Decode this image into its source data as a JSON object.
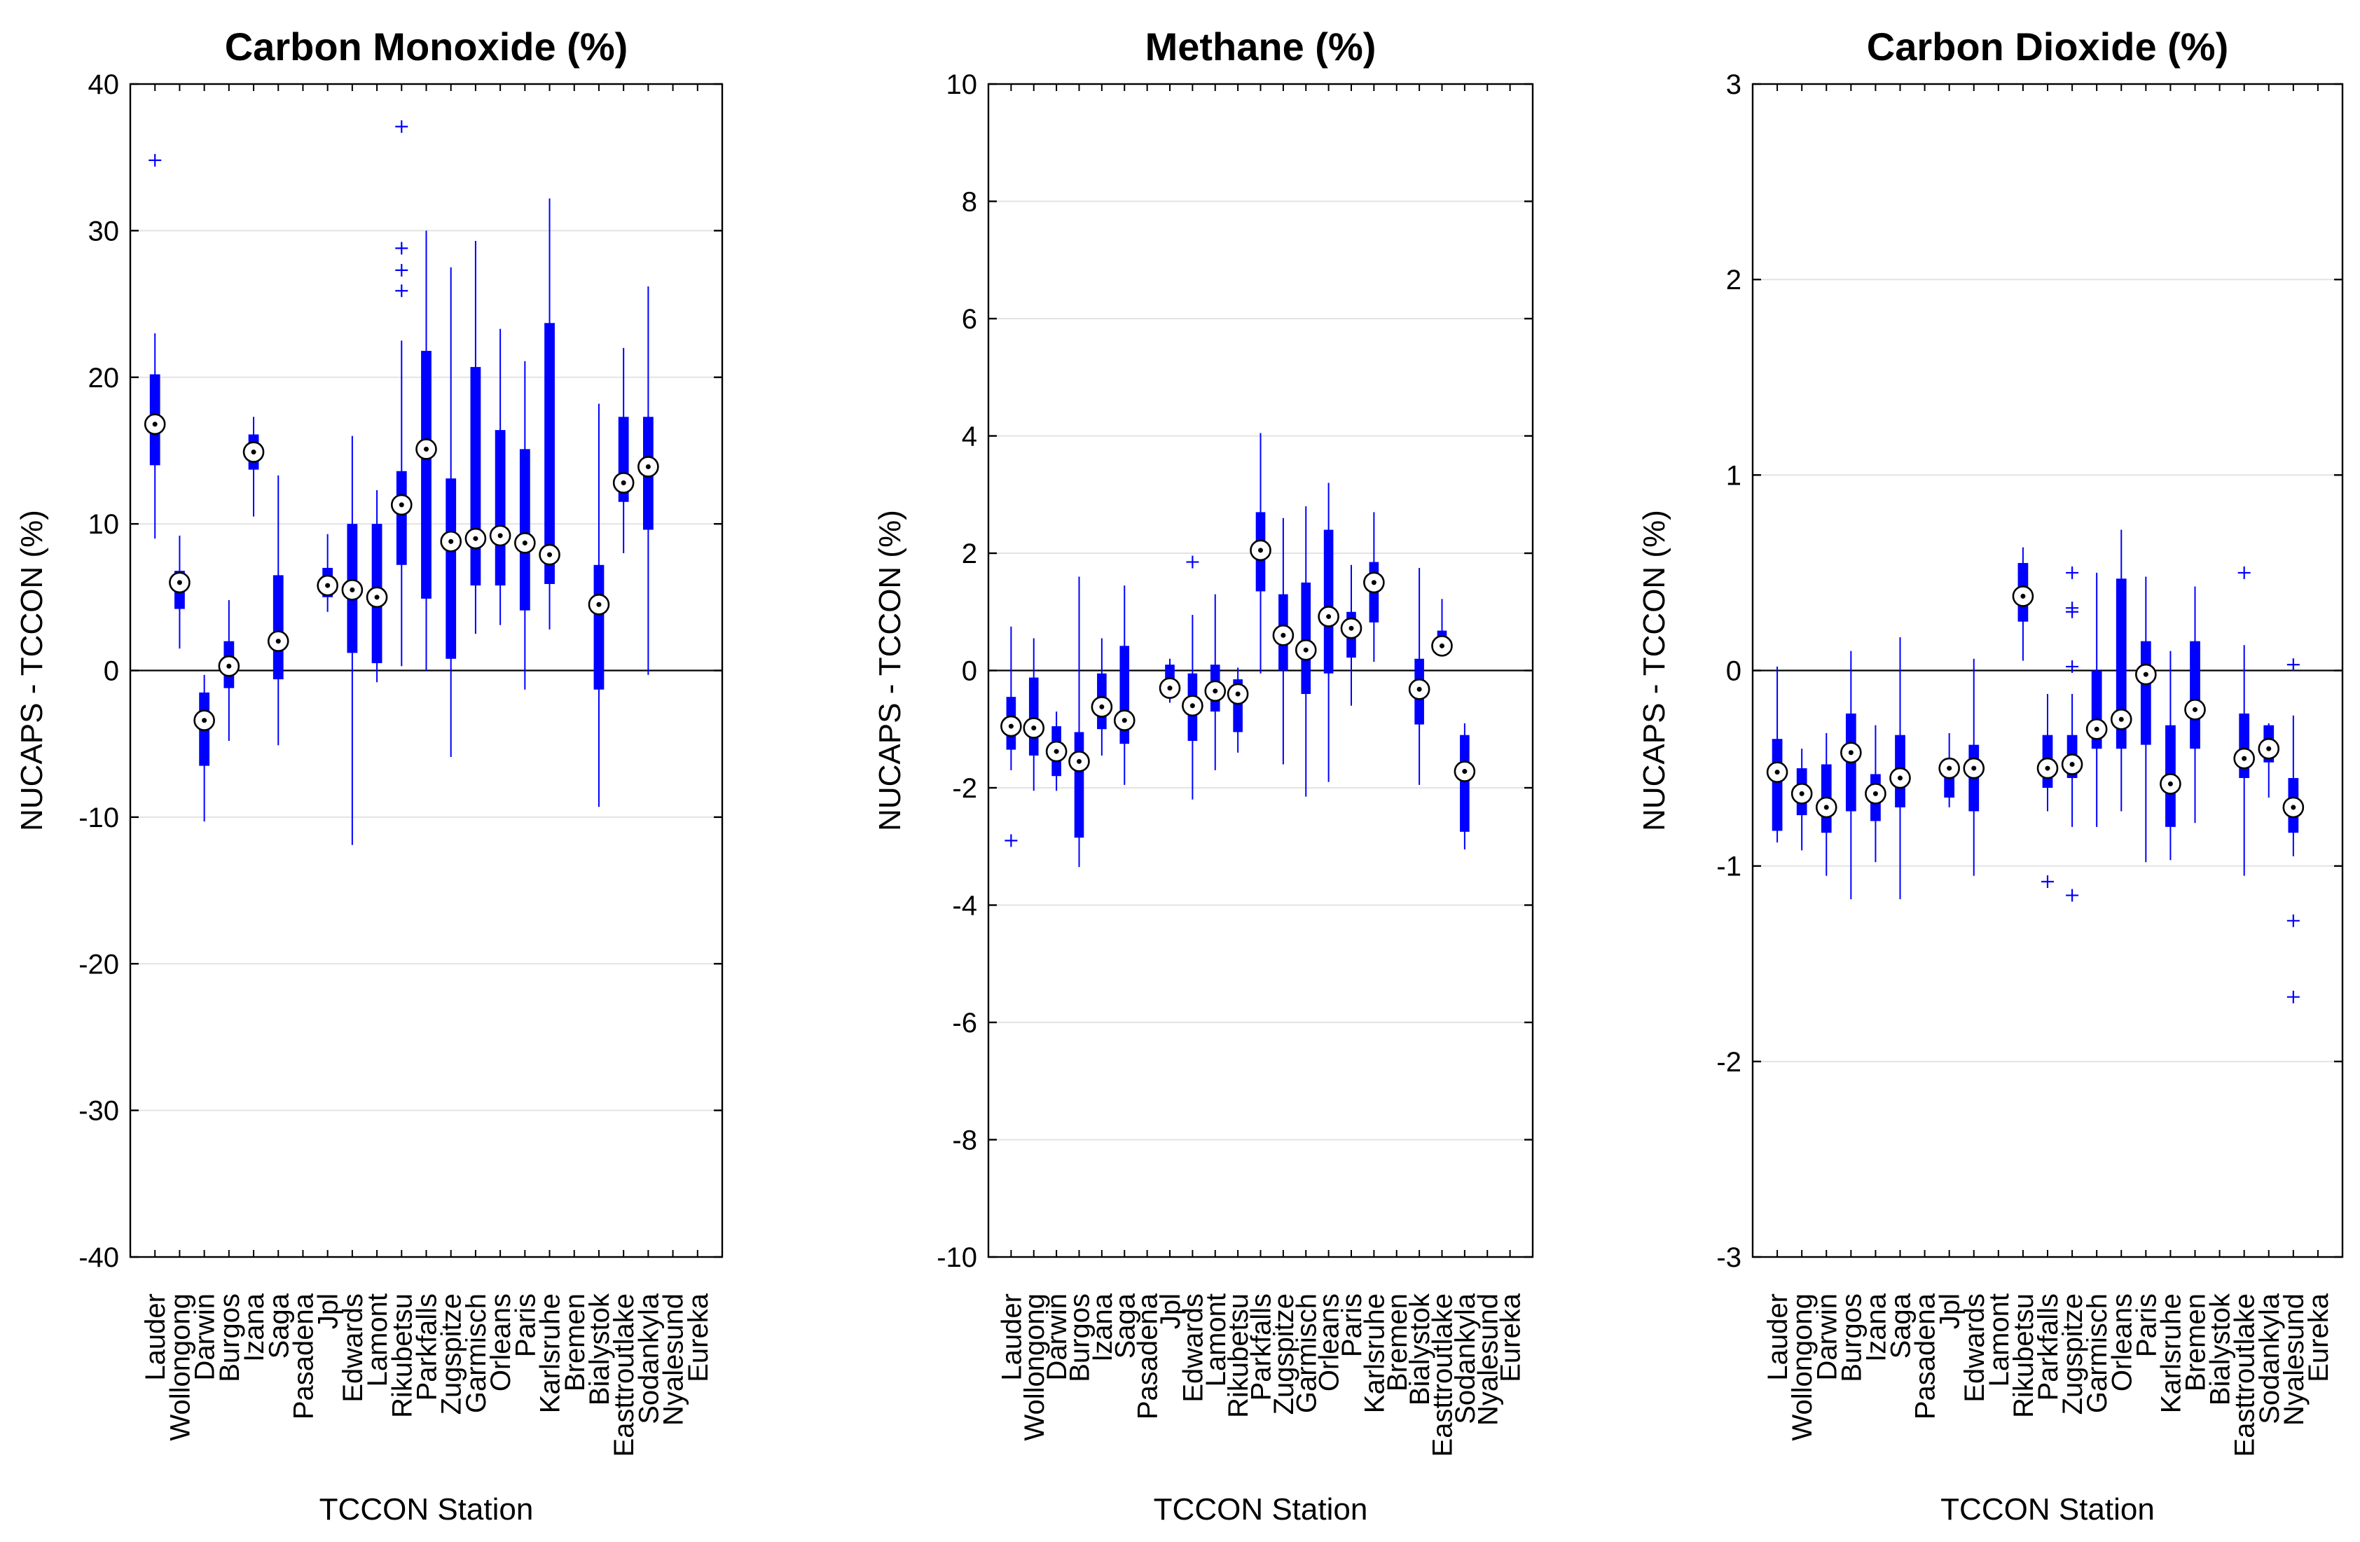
{
  "colors": {
    "box": "#0000ff",
    "axis": "#000000",
    "grid": "#e3e3e3"
  },
  "chart_data": [
    {
      "type": "boxplot",
      "title": "Carbon Monoxide (%)",
      "xlabel": "TCCON Station",
      "ylabel": "NUCAPS - TCCON (%)",
      "ylim": [
        -40,
        40
      ],
      "yticks": [
        -40,
        -30,
        -20,
        -10,
        0,
        10,
        20,
        30,
        40
      ],
      "grid": true,
      "categories": [
        "Lauder",
        "Wollongong",
        "Darwin",
        "Burgos",
        "Izana",
        "Saga",
        "Pasadena",
        "Jpl",
        "Edwards",
        "Lamont",
        "Rikubetsu",
        "Parkfalls",
        "Zugspitze",
        "Garmisch",
        "Orleans",
        "Paris",
        "Karlsruhe",
        "Bremen",
        "Bialystok",
        "Easttroutlake",
        "Sodankyla",
        "Nyalesund",
        "Eureka"
      ],
      "boxes": [
        {
          "station": "Lauder",
          "whislo": 9,
          "q1": 14,
          "med": 16.8,
          "q3": 20.2,
          "whishi": 23,
          "outliers": [
            34.8
          ]
        },
        {
          "station": "Wollongong",
          "whislo": 1.5,
          "q1": 4.2,
          "med": 6,
          "q3": 6.8,
          "whishi": 9.2,
          "outliers": []
        },
        {
          "station": "Darwin",
          "whislo": -10.3,
          "q1": -6.5,
          "med": -3.4,
          "q3": -1.5,
          "whishi": -0.3,
          "outliers": []
        },
        {
          "station": "Burgos",
          "whislo": -4.8,
          "q1": -1.2,
          "med": 0.3,
          "q3": 2,
          "whishi": 4.8,
          "outliers": []
        },
        {
          "station": "Izana",
          "whislo": 10.5,
          "q1": 13.7,
          "med": 14.9,
          "q3": 16.1,
          "whishi": 17.3,
          "outliers": []
        },
        {
          "station": "Saga",
          "whislo": -5.1,
          "q1": -0.6,
          "med": 2,
          "q3": 6.5,
          "whishi": 13.3,
          "outliers": []
        },
        null,
        {
          "station": "Jpl",
          "whislo": 4,
          "q1": 5,
          "med": 5.8,
          "q3": 7,
          "whishi": 9.3,
          "outliers": []
        },
        {
          "station": "Edwards",
          "whislo": -11.9,
          "q1": 1.2,
          "med": 5.5,
          "q3": 10,
          "whishi": 16,
          "outliers": []
        },
        {
          "station": "Lamont",
          "whislo": -0.8,
          "q1": 0.5,
          "med": 5,
          "q3": 10,
          "whishi": 12.3,
          "outliers": []
        },
        {
          "station": "Rikubetsu",
          "whislo": 0.3,
          "q1": 7.2,
          "med": 11.3,
          "q3": 13.6,
          "whishi": 22.5,
          "outliers": [
            25.9,
            27.3,
            28.8,
            37.1
          ]
        },
        {
          "station": "Parkfalls",
          "whislo": 0,
          "q1": 4.9,
          "med": 15.1,
          "q3": 21.8,
          "whishi": 30,
          "outliers": []
        },
        {
          "station": "Zugspitze",
          "whislo": -5.9,
          "q1": 0.8,
          "med": 8.8,
          "q3": 13.1,
          "whishi": 27.5,
          "outliers": []
        },
        {
          "station": "Garmisch",
          "whislo": 2.5,
          "q1": 5.8,
          "med": 9,
          "q3": 20.7,
          "whishi": 29.3,
          "outliers": []
        },
        {
          "station": "Orleans",
          "whislo": 3.1,
          "q1": 5.8,
          "med": 9.2,
          "q3": 16.4,
          "whishi": 23.3,
          "outliers": []
        },
        {
          "station": "Paris",
          "whislo": -1.3,
          "q1": 4.1,
          "med": 8.7,
          "q3": 15.1,
          "whishi": 21.1,
          "outliers": []
        },
        {
          "station": "Karlsruhe",
          "whislo": 2.8,
          "q1": 5.9,
          "med": 7.9,
          "q3": 23.7,
          "whishi": 32.2,
          "outliers": []
        },
        null,
        {
          "station": "Bialystok",
          "whislo": -9.3,
          "q1": -1.3,
          "med": 4.5,
          "q3": 7.2,
          "whishi": 18.2,
          "outliers": []
        },
        {
          "station": "Easttroutlake",
          "whislo": 8,
          "q1": 11.5,
          "med": 12.8,
          "q3": 17.3,
          "whishi": 22,
          "outliers": []
        },
        {
          "station": "Sodankyla",
          "whislo": -0.3,
          "q1": 9.6,
          "med": 13.9,
          "q3": 17.3,
          "whishi": 26.2,
          "outliers": []
        },
        null,
        null
      ]
    },
    {
      "type": "boxplot",
      "title": "Methane (%)",
      "xlabel": "TCCON Station",
      "ylabel": "NUCAPS - TCCON (%)",
      "ylim": [
        -10,
        10
      ],
      "yticks": [
        -10,
        -8,
        -6,
        -4,
        -2,
        0,
        2,
        4,
        6,
        8,
        10
      ],
      "grid": true,
      "categories": [
        "Lauder",
        "Wollongong",
        "Darwin",
        "Burgos",
        "Izana",
        "Saga",
        "Pasadena",
        "Jpl",
        "Edwards",
        "Lamont",
        "Rikubetsu",
        "Parkfalls",
        "Zugspitze",
        "Garmisch",
        "Orleans",
        "Paris",
        "Karlsruhe",
        "Bremen",
        "Bialystok",
        "Easttroutlake",
        "Sodankyla",
        "Nyalesund",
        "Eureka"
      ],
      "boxes": [
        {
          "station": "Lauder",
          "whislo": -1.7,
          "q1": -1.35,
          "med": -0.95,
          "q3": -0.45,
          "whishi": 0.75,
          "outliers": [
            -2.9
          ]
        },
        {
          "station": "Wollongong",
          "whislo": -2.05,
          "q1": -1.45,
          "med": -0.98,
          "q3": -0.12,
          "whishi": 0.55,
          "outliers": []
        },
        {
          "station": "Darwin",
          "whislo": -2.05,
          "q1": -1.8,
          "med": -1.38,
          "q3": -0.95,
          "whishi": -0.7,
          "outliers": []
        },
        {
          "station": "Burgos",
          "whislo": -3.35,
          "q1": -2.85,
          "med": -1.55,
          "q3": -1.05,
          "whishi": 1.6,
          "outliers": []
        },
        {
          "station": "Izana",
          "whislo": -1.45,
          "q1": -1,
          "med": -0.62,
          "q3": -0.05,
          "whishi": 0.55,
          "outliers": []
        },
        {
          "station": "Saga",
          "whislo": -1.95,
          "q1": -1.25,
          "med": -0.85,
          "q3": 0.42,
          "whishi": 1.45,
          "outliers": []
        },
        null,
        {
          "station": "Jpl",
          "whislo": -0.55,
          "q1": -0.45,
          "med": -0.3,
          "q3": 0.1,
          "whishi": 0.2,
          "outliers": []
        },
        {
          "station": "Edwards",
          "whislo": -2.2,
          "q1": -1.2,
          "med": -0.6,
          "q3": -0.05,
          "whishi": 0.95,
          "outliers": [
            1.85
          ]
        },
        {
          "station": "Lamont",
          "whislo": -1.7,
          "q1": -0.7,
          "med": -0.35,
          "q3": 0.1,
          "whishi": 1.3,
          "outliers": []
        },
        {
          "station": "Rikubetsu",
          "whislo": -1.4,
          "q1": -1.05,
          "med": -0.4,
          "q3": -0.15,
          "whishi": 0.05,
          "outliers": []
        },
        {
          "station": "Parkfalls",
          "whislo": -0.05,
          "q1": 1.35,
          "med": 2.05,
          "q3": 2.7,
          "whishi": 4.05,
          "outliers": []
        },
        {
          "station": "Zugspitze",
          "whislo": -1.6,
          "q1": 0,
          "med": 0.6,
          "q3": 1.3,
          "whishi": 2.6,
          "outliers": []
        },
        {
          "station": "Garmisch",
          "whislo": -2.15,
          "q1": -0.4,
          "med": 0.35,
          "q3": 1.5,
          "whishi": 2.8,
          "outliers": []
        },
        {
          "station": "Orleans",
          "whislo": -1.9,
          "q1": -0.05,
          "med": 0.92,
          "q3": 2.4,
          "whishi": 3.2,
          "outliers": []
        },
        {
          "station": "Paris",
          "whislo": -0.6,
          "q1": 0.22,
          "med": 0.72,
          "q3": 1,
          "whishi": 1.8,
          "outliers": []
        },
        {
          "station": "Karlsruhe",
          "whislo": 0.15,
          "q1": 0.82,
          "med": 1.5,
          "q3": 1.85,
          "whishi": 2.7,
          "outliers": []
        },
        null,
        {
          "station": "Bialystok",
          "whislo": -1.95,
          "q1": -0.92,
          "med": -0.32,
          "q3": 0.2,
          "whishi": 1.75,
          "outliers": []
        },
        {
          "station": "Easttroutlake",
          "whislo": 0.32,
          "q1": 0.32,
          "med": 0.42,
          "q3": 0.68,
          "whishi": 1.22,
          "outliers": []
        },
        {
          "station": "Sodankyla",
          "whislo": -3.05,
          "q1": -2.75,
          "med": -1.72,
          "q3": -1.1,
          "whishi": -0.9,
          "outliers": []
        },
        null,
        null
      ]
    },
    {
      "type": "boxplot",
      "title": "Carbon Dioxide (%)",
      "xlabel": "TCCON Station",
      "ylabel": "NUCAPS - TCCON (%)",
      "ylim": [
        -3,
        3
      ],
      "yticks": [
        -3,
        -2,
        -1,
        0,
        1,
        2,
        3
      ],
      "grid": true,
      "categories": [
        "Lauder",
        "Wollongong",
        "Darwin",
        "Burgos",
        "Izana",
        "Saga",
        "Pasadena",
        "Jpl",
        "Edwards",
        "Lamont",
        "Rikubetsu",
        "Parkfalls",
        "Zugspitze",
        "Garmisch",
        "Orleans",
        "Paris",
        "Karlsruhe",
        "Bremen",
        "Bialystok",
        "Easttroutlake",
        "Sodankyla",
        "Nyalesund",
        "Eureka"
      ],
      "boxes": [
        {
          "station": "Lauder",
          "whislo": -0.88,
          "q1": -0.82,
          "med": -0.52,
          "q3": -0.35,
          "whishi": 0.02,
          "outliers": []
        },
        {
          "station": "Wollongong",
          "whislo": -0.92,
          "q1": -0.74,
          "med": -0.63,
          "q3": -0.5,
          "whishi": -0.4,
          "outliers": []
        },
        {
          "station": "Darwin",
          "whislo": -1.05,
          "q1": -0.83,
          "med": -0.7,
          "q3": -0.48,
          "whishi": -0.32,
          "outliers": []
        },
        {
          "station": "Burgos",
          "whislo": -1.17,
          "q1": -0.72,
          "med": -0.42,
          "q3": -0.22,
          "whishi": 0.1,
          "outliers": []
        },
        {
          "station": "Izana",
          "whislo": -0.98,
          "q1": -0.77,
          "med": -0.63,
          "q3": -0.53,
          "whishi": -0.28,
          "outliers": []
        },
        {
          "station": "Saga",
          "whislo": -1.17,
          "q1": -0.7,
          "med": -0.55,
          "q3": -0.33,
          "whishi": 0.17,
          "outliers": []
        },
        null,
        {
          "station": "Jpl",
          "whislo": -0.7,
          "q1": -0.65,
          "med": -0.5,
          "q3": -0.45,
          "whishi": -0.32,
          "outliers": []
        },
        {
          "station": "Edwards",
          "whislo": -1.05,
          "q1": -0.72,
          "med": -0.5,
          "q3": -0.38,
          "whishi": 0.06,
          "outliers": []
        },
        null,
        {
          "station": "Rikubetsu",
          "whislo": 0.05,
          "q1": 0.25,
          "med": 0.38,
          "q3": 0.55,
          "whishi": 0.63,
          "outliers": []
        },
        {
          "station": "Parkfalls",
          "whislo": -0.72,
          "q1": -0.6,
          "med": -0.5,
          "q3": -0.33,
          "whishi": -0.12,
          "outliers": [
            -1.08
          ]
        },
        {
          "station": "Zugspitze",
          "whislo": -0.8,
          "q1": -0.55,
          "med": -0.48,
          "q3": -0.33,
          "whishi": -0.12,
          "outliers": [
            -1.15,
            0.02,
            0.3,
            0.32,
            0.5
          ]
        },
        {
          "station": "Garmisch",
          "whislo": -0.8,
          "q1": -0.4,
          "med": -0.3,
          "q3": 0,
          "whishi": 0.5,
          "outliers": []
        },
        {
          "station": "Orleans",
          "whislo": -0.72,
          "q1": -0.4,
          "med": -0.25,
          "q3": 0.47,
          "whishi": 0.72,
          "outliers": []
        },
        {
          "station": "Paris",
          "whislo": -0.98,
          "q1": -0.38,
          "med": -0.02,
          "q3": 0.15,
          "whishi": 0.48,
          "outliers": []
        },
        {
          "station": "Karlsruhe",
          "whislo": -0.97,
          "q1": -0.8,
          "med": -0.58,
          "q3": -0.28,
          "whishi": 0.1,
          "outliers": []
        },
        {
          "station": "Bremen",
          "whislo": -0.78,
          "q1": -0.4,
          "med": -0.2,
          "q3": 0.15,
          "whishi": 0.43,
          "outliers": []
        },
        null,
        {
          "station": "Easttroutlake",
          "whislo": -1.05,
          "q1": -0.55,
          "med": -0.45,
          "q3": -0.22,
          "whishi": 0.13,
          "outliers": [
            0.5
          ]
        },
        {
          "station": "Sodankyla",
          "whislo": -0.65,
          "q1": -0.47,
          "med": -0.4,
          "q3": -0.28,
          "whishi": -0.27,
          "outliers": []
        },
        {
          "station": "Nyalesund",
          "whislo": -0.95,
          "q1": -0.83,
          "med": -0.7,
          "q3": -0.55,
          "whishi": -0.23,
          "outliers": [
            -1.67,
            -1.28,
            0.03
          ]
        },
        null
      ]
    }
  ]
}
